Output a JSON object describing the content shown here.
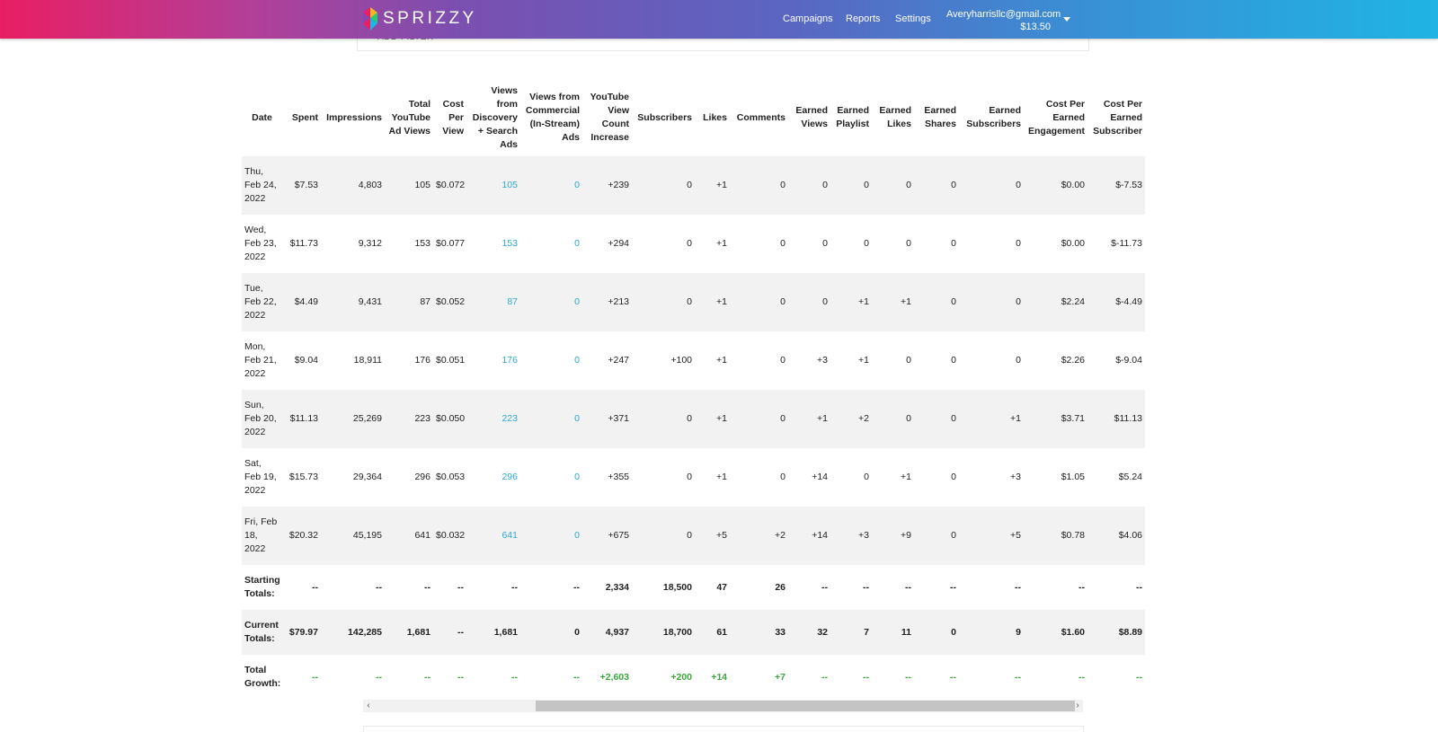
{
  "header": {
    "brand": "SPRIZZY",
    "nav": [
      "Campaigns",
      "Reports",
      "Settings"
    ],
    "account_email": "Averyharrisllc@gmail.com",
    "account_balance": "$13.50",
    "colors": {
      "gradient_start": "#e91e63",
      "gradient_end": "#1fb4e3"
    }
  },
  "filter": {
    "add_filter_label": "ADD FILTER"
  },
  "table": {
    "headers": [
      "Date",
      "Spent",
      "Impressions",
      "Total YouTube Ad Views",
      "Cost Per View",
      "Views from Discovery + Search Ads",
      "Views from Commercial (In-Stream) Ads",
      "YouTube View Count Increase",
      "Subscribers",
      "Likes",
      "Comments",
      "Earned Views",
      "Earned Playlist",
      "Earned Likes",
      "Earned Shares",
      "Earned Subscribers",
      "Cost Per Earned Engagement",
      "Cost Per Earned Subscriber"
    ],
    "rows": [
      [
        "Thu, Feb 24, 2022",
        "$7.53",
        "4,803",
        "105",
        "$0.072",
        "105",
        "0",
        "+239",
        "0",
        "+1",
        "0",
        "0",
        "0",
        "0",
        "0",
        "0",
        "$0.00",
        "$-7.53"
      ],
      [
        "Wed, Feb 23, 2022",
        "$11.73",
        "9,312",
        "153",
        "$0.077",
        "153",
        "0",
        "+294",
        "0",
        "+1",
        "0",
        "0",
        "0",
        "0",
        "0",
        "0",
        "$0.00",
        "$-11.73"
      ],
      [
        "Tue, Feb 22, 2022",
        "$4.49",
        "9,431",
        "87",
        "$0.052",
        "87",
        "0",
        "+213",
        "0",
        "+1",
        "0",
        "0",
        "+1",
        "+1",
        "0",
        "0",
        "$2.24",
        "$-4.49"
      ],
      [
        "Mon, Feb 21, 2022",
        "$9.04",
        "18,911",
        "176",
        "$0.051",
        "176",
        "0",
        "+247",
        "+100",
        "+1",
        "0",
        "+3",
        "+1",
        "0",
        "0",
        "0",
        "$2.26",
        "$-9.04"
      ],
      [
        "Sun, Feb 20, 2022",
        "$11.13",
        "25,269",
        "223",
        "$0.050",
        "223",
        "0",
        "+371",
        "0",
        "+1",
        "0",
        "+1",
        "+2",
        "0",
        "0",
        "+1",
        "$3.71",
        "$11.13"
      ],
      [
        "Sat, Feb 19, 2022",
        "$15.73",
        "29,364",
        "296",
        "$0.053",
        "296",
        "0",
        "+355",
        "0",
        "+1",
        "0",
        "+14",
        "0",
        "+1",
        "0",
        "+3",
        "$1.05",
        "$5.24"
      ],
      [
        "Fri, Feb 18, 2022",
        "$20.32",
        "45,195",
        "641",
        "$0.032",
        "641",
        "0",
        "+675",
        "0",
        "+5",
        "+2",
        "+14",
        "+3",
        "+9",
        "0",
        "+5",
        "$0.78",
        "$4.06"
      ]
    ],
    "starting_totals": [
      "Starting Totals:",
      "--",
      "--",
      "--",
      "--",
      "--",
      "--",
      "2,334",
      "18,500",
      "47",
      "26",
      "--",
      "--",
      "--",
      "--",
      "--",
      "--",
      "--"
    ],
    "current_totals": [
      "Current Totals:",
      "$79.97",
      "142,285",
      "1,681",
      "--",
      "1,681",
      "0",
      "4,937",
      "18,700",
      "61",
      "33",
      "32",
      "7",
      "11",
      "0",
      "9",
      "$1.60",
      "$8.89"
    ],
    "total_growth": [
      "Total Growth:",
      "--",
      "--",
      "--",
      "--",
      "--",
      "--",
      "+2,603",
      "+200",
      "+14",
      "+7",
      "--",
      "--",
      "--",
      "--",
      "--",
      "--",
      "--"
    ]
  },
  "scrollbar": {
    "left_arrow": "‹",
    "right_arrow": "›"
  }
}
